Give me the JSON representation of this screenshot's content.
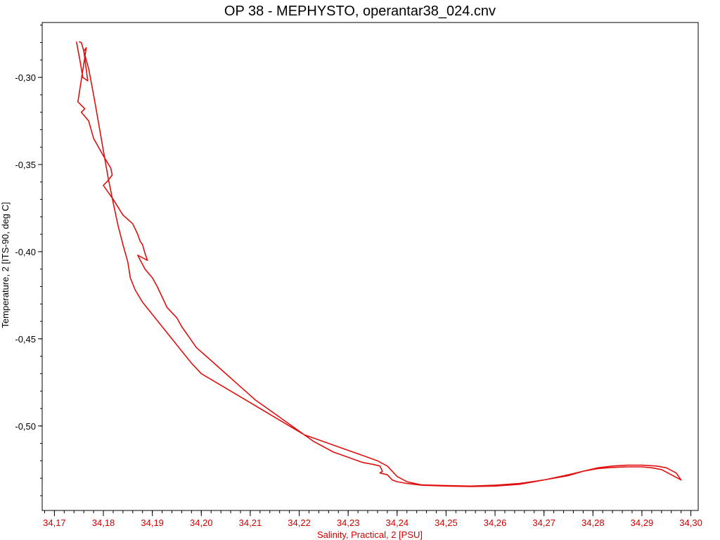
{
  "chart_data": {
    "type": "line",
    "title": "OP 38 - MEPHYSTO, operantar38_024.cnv",
    "xlabel": "Salinity, Practical, 2 [PSU]",
    "ylabel": "Temperature, 2 [ITS-90, deg C]",
    "xlim": [
      34.1675,
      34.3015
    ],
    "ylim": [
      -0.5485,
      -0.2685
    ],
    "y_inverted": true,
    "x_ticks": [
      "34,17",
      "34,18",
      "34,19",
      "34,20",
      "34,21",
      "34,22",
      "34,23",
      "34,24",
      "34,25",
      "34,26",
      "34,27",
      "34,28",
      "34,29",
      "34,30"
    ],
    "x_tick_values": [
      34.17,
      34.18,
      34.19,
      34.2,
      34.21,
      34.22,
      34.23,
      34.24,
      34.25,
      34.26,
      34.27,
      34.28,
      34.29,
      34.3
    ],
    "y_ticks": [
      "-0,30",
      "-0,35",
      "-0,40",
      "-0,45",
      "-0,50"
    ],
    "y_tick_values": [
      -0.3,
      -0.35,
      -0.4,
      -0.45,
      -0.5
    ],
    "grid": false,
    "legend": "none",
    "color": "#e01010",
    "series": [
      {
        "x": [
          34.1745,
          34.1752,
          34.1758,
          34.1768,
          34.176,
          34.1765,
          34.1748,
          34.1762,
          34.1755,
          34.177,
          34.178,
          34.18,
          34.1815,
          34.1818,
          34.181,
          34.18,
          34.182,
          34.184,
          34.186,
          34.187,
          34.1875,
          34.188,
          34.1885,
          34.189,
          34.187,
          34.1885,
          34.19,
          34.191,
          34.192,
          34.193,
          34.195,
          34.196,
          34.1975,
          34.199,
          34.201,
          34.203,
          34.205,
          34.207,
          34.209,
          34.211,
          34.213,
          34.215,
          34.217,
          34.219,
          34.221,
          34.223,
          34.225,
          34.227,
          34.229,
          34.231,
          34.233,
          34.235,
          34.2365,
          34.237,
          34.2365,
          34.238,
          34.239,
          34.24,
          34.242,
          34.245,
          34.25,
          34.255,
          34.26,
          34.265,
          34.27,
          34.275,
          34.278,
          34.281,
          34.284,
          34.287,
          34.29,
          34.293,
          34.295,
          34.297,
          34.298,
          34.296,
          34.294,
          34.292,
          34.29,
          34.287,
          34.284,
          34.281,
          34.278,
          34.275,
          34.27,
          34.265,
          34.26,
          34.255,
          34.25,
          34.245,
          34.242,
          34.24,
          34.239,
          34.238,
          34.236,
          34.233,
          34.23,
          34.227,
          34.224,
          34.221,
          34.218,
          34.215,
          34.212,
          34.209,
          34.206,
          34.203,
          34.2,
          34.198,
          34.196,
          34.194,
          34.192,
          34.19,
          34.188,
          34.1865,
          34.1855,
          34.185,
          34.184,
          34.183,
          34.182,
          34.181,
          34.18,
          34.179,
          34.178,
          34.177,
          34.176,
          34.1755,
          34.175
        ],
        "y": [
          -0.2795,
          -0.29,
          -0.3,
          -0.302,
          -0.285,
          -0.283,
          -0.314,
          -0.318,
          -0.32,
          -0.325,
          -0.335,
          -0.345,
          -0.352,
          -0.356,
          -0.359,
          -0.362,
          -0.37,
          -0.379,
          -0.384,
          -0.39,
          -0.394,
          -0.396,
          -0.401,
          -0.405,
          -0.402,
          -0.41,
          -0.415,
          -0.42,
          -0.426,
          -0.432,
          -0.438,
          -0.443,
          -0.449,
          -0.455,
          -0.46,
          -0.465,
          -0.47,
          -0.475,
          -0.48,
          -0.485,
          -0.489,
          -0.493,
          -0.497,
          -0.501,
          -0.505,
          -0.509,
          -0.512,
          -0.515,
          -0.517,
          -0.519,
          -0.521,
          -0.522,
          -0.523,
          -0.526,
          -0.527,
          -0.528,
          -0.531,
          -0.532,
          -0.533,
          -0.534,
          -0.5345,
          -0.5348,
          -0.5345,
          -0.5335,
          -0.531,
          -0.528,
          -0.526,
          -0.524,
          -0.523,
          -0.5225,
          -0.5225,
          -0.523,
          -0.524,
          -0.527,
          -0.531,
          -0.528,
          -0.525,
          -0.524,
          -0.5235,
          -0.5235,
          -0.5238,
          -0.5245,
          -0.526,
          -0.5285,
          -0.531,
          -0.533,
          -0.534,
          -0.5345,
          -0.5342,
          -0.5338,
          -0.532,
          -0.529,
          -0.526,
          -0.523,
          -0.52,
          -0.517,
          -0.514,
          -0.511,
          -0.508,
          -0.505,
          -0.5,
          -0.495,
          -0.49,
          -0.485,
          -0.48,
          -0.475,
          -0.47,
          -0.464,
          -0.457,
          -0.45,
          -0.443,
          -0.436,
          -0.429,
          -0.422,
          -0.415,
          -0.406,
          -0.396,
          -0.385,
          -0.372,
          -0.358,
          -0.342,
          -0.326,
          -0.31,
          -0.295,
          -0.285,
          -0.28,
          -0.2795
        ]
      }
    ]
  }
}
